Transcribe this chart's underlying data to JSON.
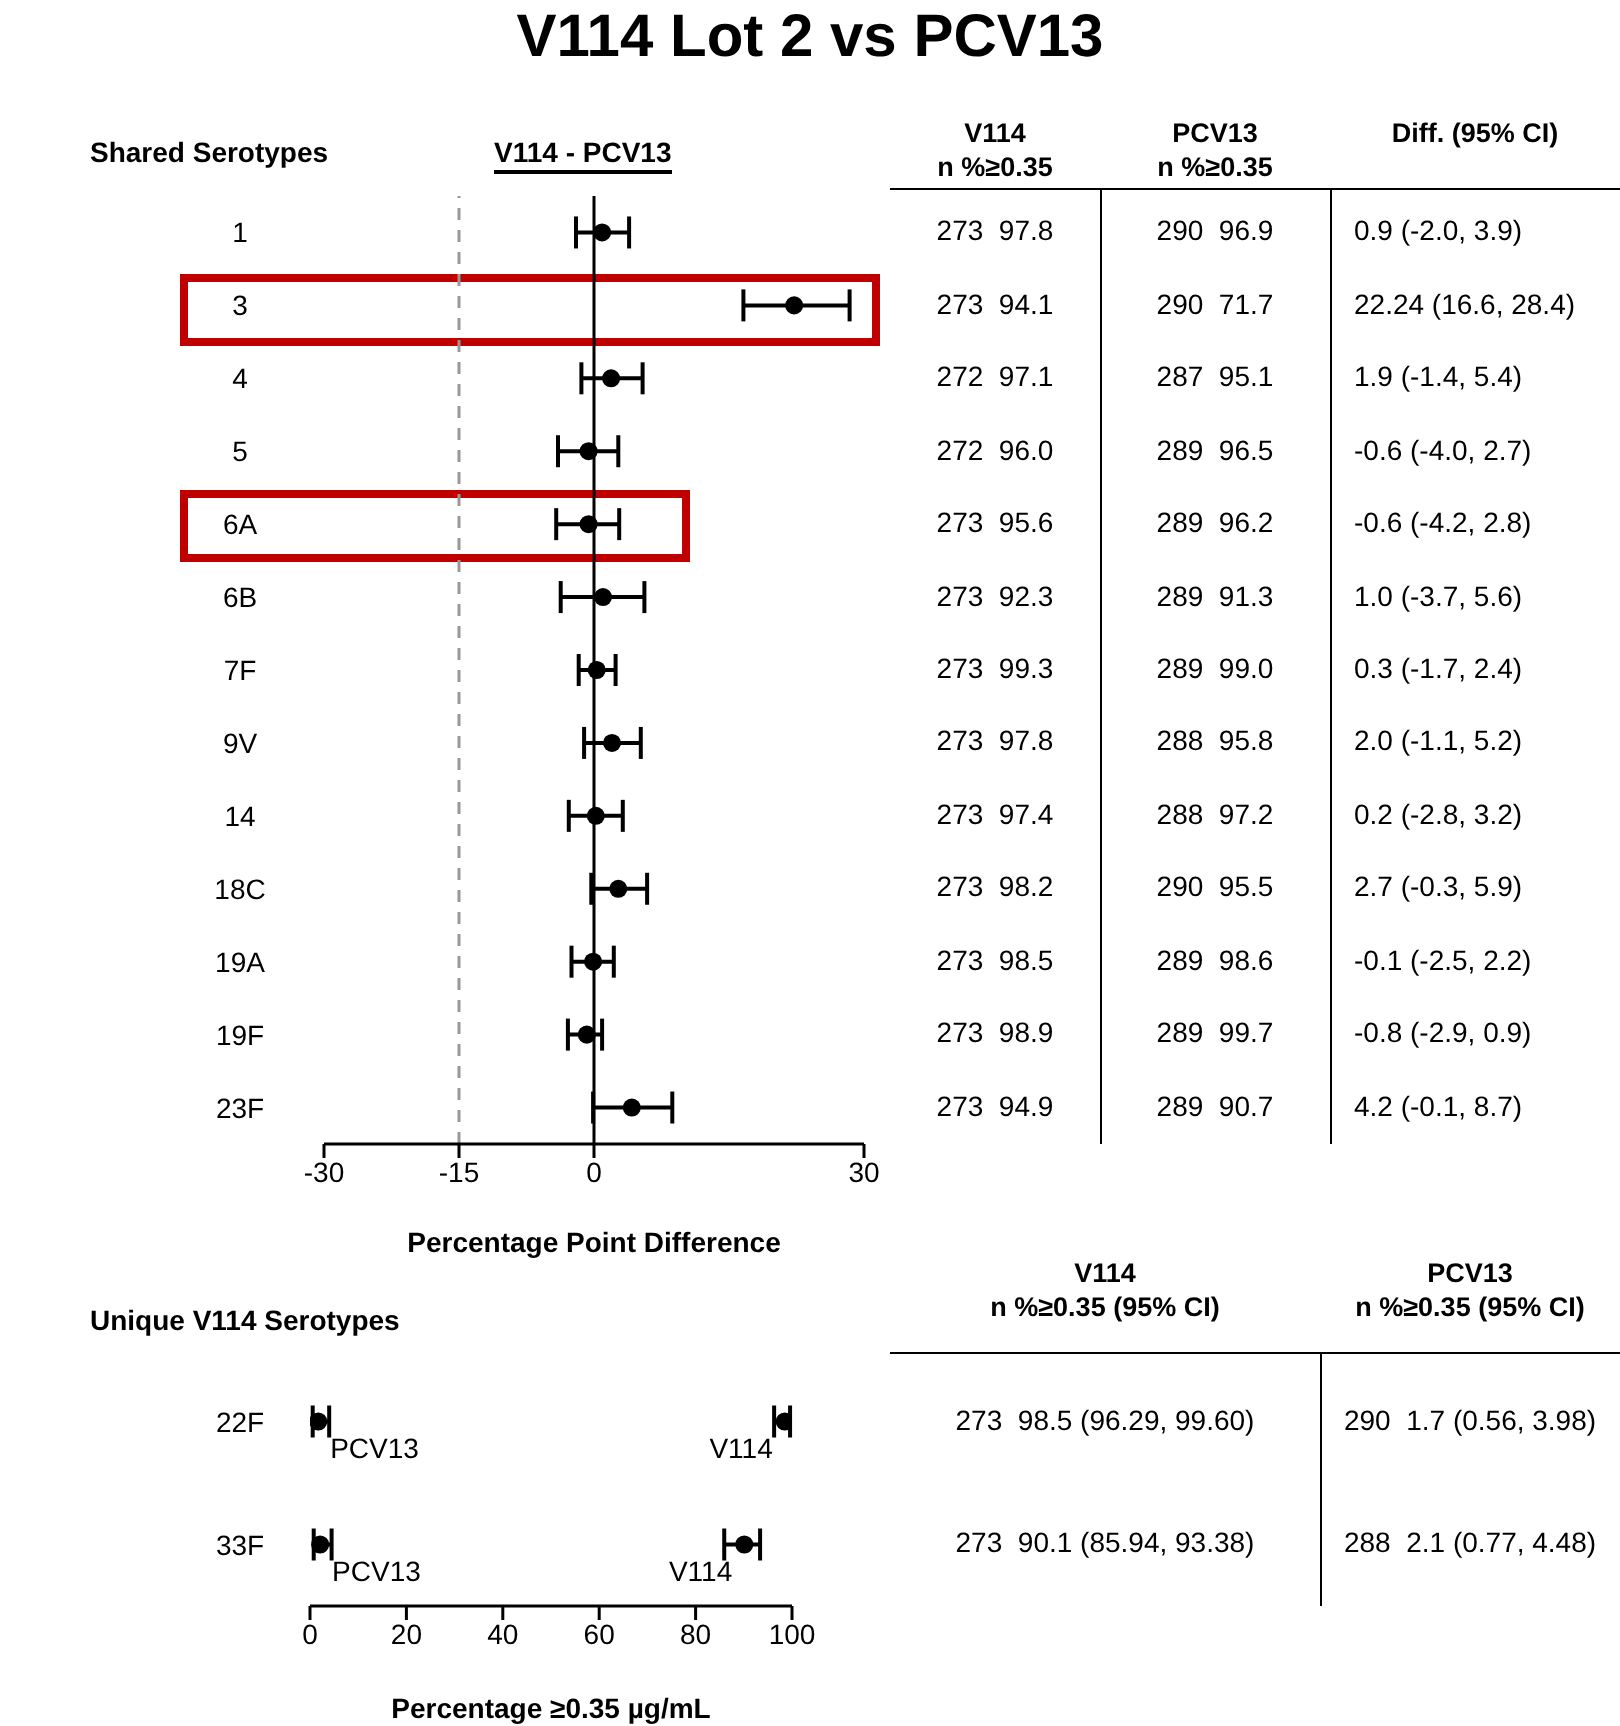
{
  "chart_data": [
    {
      "type": "scatter",
      "orientation": "horizontal",
      "title": "V114 Lot 2 vs PCV13",
      "ylabel": "Shared Serotypes",
      "xlabel": "Percentage Point Difference",
      "annotations": [
        "V114 - PCV13"
      ],
      "categories": [
        "1",
        "3",
        "4",
        "5",
        "6A",
        "6B",
        "7F",
        "9V",
        "14",
        "18C",
        "19A",
        "19F",
        "23F"
      ],
      "series": [
        {
          "color": "#000000",
          "values": [
            0.9,
            22.24,
            1.9,
            -0.6,
            -0.6,
            1.0,
            0.3,
            2.0,
            0.2,
            2.7,
            -0.1,
            -0.8,
            4.2
          ],
          "errors": [
            [
              -2.0,
              3.9
            ],
            [
              16.6,
              28.4
            ],
            [
              -1.4,
              5.4
            ],
            [
              -4.0,
              2.7
            ],
            [
              -4.2,
              2.8
            ],
            [
              -3.7,
              5.6
            ],
            [
              -1.7,
              2.4
            ],
            [
              -1.1,
              5.2
            ],
            [
              -2.8,
              3.2
            ],
            [
              -0.3,
              5.9
            ],
            [
              -2.5,
              2.2
            ],
            [
              -2.9,
              0.9
            ],
            [
              -0.1,
              8.7
            ]
          ]
        }
      ],
      "xlim": [
        -30,
        30
      ],
      "xticks": [
        -30,
        -15,
        0,
        30
      ],
      "marker": "circle",
      "ref_lines": [
        {
          "axis": "x",
          "value": -15,
          "color": "#999999",
          "line_style": "dashed"
        },
        {
          "axis": "x",
          "value": 0,
          "color": "#000000",
          "line_style": "solid"
        }
      ]
    },
    {
      "type": "other",
      "annotations": [
        "V114\nn %≥0.35",
        "PCV13\nn %≥0.35",
        "Diff. (95% CI)",
        "273  97.8",
        "290  96.9",
        "0.9 (-2.0, 3.9)",
        "273  94.1",
        "290  71.7",
        "22.24 (16.6, 28.4)",
        "272  97.1",
        "287  95.1",
        "1.9 (-1.4, 5.4)",
        "272  96.0",
        "289  96.5",
        "-0.6 (-4.0, 2.7)",
        "273  95.6",
        "289  96.2",
        "-0.6 (-4.2, 2.8)",
        "273  92.3",
        "289  91.3",
        "1.0 (-3.7, 5.6)",
        "273  99.3",
        "289  99.0",
        "0.3 (-1.7, 2.4)",
        "273  97.8",
        "288  95.8",
        "2.0 (-1.1, 5.2)",
        "273  97.4",
        "288  97.2",
        "0.2 (-2.8, 3.2)",
        "273  98.2",
        "290  95.5",
        "2.7 (-0.3, 5.9)",
        "273  98.5",
        "289  98.6",
        "-0.1 (-2.5, 2.2)",
        "273  98.9",
        "289  99.7",
        "-0.8 (-2.9, 0.9)",
        "273  94.9",
        "289  90.7",
        "4.2 (-0.1, 8.7)"
      ]
    },
    {
      "type": "scatter",
      "orientation": "horizontal",
      "ylabel": "Unique V114 Serotypes",
      "xlabel": "Percentage ≥0.35 µg/mL",
      "categories": [
        "22F",
        "33F"
      ],
      "series": [
        {
          "name": "PCV13",
          "color": "#000000",
          "values": [
            1.7,
            2.1
          ],
          "errors": [
            [
              0.56,
              3.98
            ],
            [
              0.77,
              4.48
            ]
          ]
        },
        {
          "name": "V114",
          "color": "#000000",
          "values": [
            98.5,
            90.1
          ],
          "errors": [
            [
              96.29,
              99.6
            ],
            [
              85.94,
              93.38
            ]
          ]
        }
      ],
      "xlim": [
        0,
        100
      ],
      "xticks": [
        0,
        20,
        40,
        60,
        80,
        100
      ],
      "marker": "circle"
    },
    {
      "type": "other",
      "annotations": [
        "V114\nn %≥0.35 (95% CI)",
        "PCV13\nn %≥0.35 (95% CI)",
        "273  98.5 (96.29, 99.60)",
        "290  1.7 (0.56, 3.98)",
        "273  90.1 (85.94, 93.38)",
        "288  2.1 (0.77, 4.48)"
      ]
    }
  ]
}
